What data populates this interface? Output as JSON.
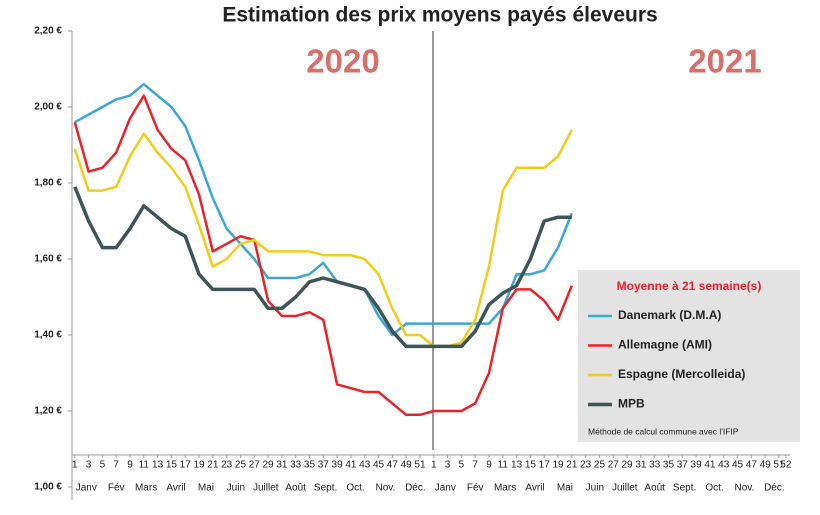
{
  "chart_data": {
    "type": "line",
    "title": "Estimation des prix moyens payés éleveurs",
    "annotations": [
      "2020",
      "2021"
    ],
    "legend_title": "Moyenne à  21 semaine(s)",
    "note": "Méthode de calcul commune avec l'IFIP",
    "month_labels": [
      "Janv",
      "Fév",
      "Mars",
      "Avril",
      "Mai",
      "Juin",
      "Juillet",
      "Août",
      "Sept.",
      "Oct.",
      "Nov.",
      "Déc."
    ],
    "x": [
      1,
      3,
      5,
      7,
      9,
      11,
      13,
      15,
      17,
      19,
      21,
      23,
      25,
      27,
      29,
      31,
      33,
      35,
      37,
      39,
      41,
      43,
      45,
      47,
      49,
      51,
      53,
      55,
      57,
      59,
      61,
      63,
      65,
      67,
      69,
      71,
      73
    ],
    "series": [
      {
        "name": "Danemark (D.M.A)",
        "color": "#3aa7d8",
        "values": [
          1.96,
          1.98,
          2.0,
          2.02,
          2.03,
          2.06,
          2.03,
          2.0,
          1.95,
          1.86,
          1.76,
          1.68,
          1.64,
          1.6,
          1.55,
          1.55,
          1.55,
          1.56,
          1.59,
          1.54,
          1.53,
          1.52,
          1.45,
          1.4,
          1.43,
          1.43,
          1.43,
          1.43,
          1.43,
          1.43,
          1.43,
          1.47,
          1.56,
          1.56,
          1.57,
          1.63,
          1.72
        ]
      },
      {
        "name": "Allemagne (AMI)",
        "color": "#e8232a",
        "values": [
          1.96,
          1.83,
          1.84,
          1.88,
          1.97,
          2.03,
          1.94,
          1.89,
          1.86,
          1.77,
          1.62,
          1.64,
          1.66,
          1.65,
          1.49,
          1.45,
          1.45,
          1.46,
          1.44,
          1.27,
          1.26,
          1.25,
          1.25,
          1.22,
          1.19,
          1.19,
          1.2,
          1.2,
          1.2,
          1.22,
          1.3,
          1.47,
          1.52,
          1.52,
          1.49,
          1.44,
          1.53
        ]
      },
      {
        "name": "Espagne (Mercolleida)",
        "color": "#f2cc1a",
        "values": [
          1.89,
          1.78,
          1.78,
          1.79,
          1.87,
          1.93,
          1.88,
          1.84,
          1.79,
          1.69,
          1.58,
          1.6,
          1.64,
          1.65,
          1.62,
          1.62,
          1.62,
          1.62,
          1.61,
          1.61,
          1.61,
          1.6,
          1.56,
          1.47,
          1.4,
          1.4,
          1.37,
          1.37,
          1.38,
          1.44,
          1.58,
          1.78,
          1.84,
          1.84,
          1.84,
          1.87,
          1.94
        ]
      },
      {
        "name": "MPB",
        "color": "#3d5556",
        "values": [
          1.79,
          1.7,
          1.63,
          1.63,
          1.68,
          1.74,
          1.71,
          1.68,
          1.66,
          1.56,
          1.52,
          1.52,
          1.52,
          1.52,
          1.47,
          1.47,
          1.5,
          1.54,
          1.55,
          1.54,
          1.53,
          1.52,
          1.47,
          1.41,
          1.37,
          1.37,
          1.37,
          1.37,
          1.37,
          1.41,
          1.48,
          1.51,
          1.53,
          1.6,
          1.7,
          1.71,
          1.71
        ]
      }
    ],
    "xlim": [
      0.6,
      104.6
    ],
    "xticks": [
      1,
      3,
      5,
      7,
      9,
      11,
      13,
      15,
      17,
      19,
      21,
      23,
      25,
      27,
      29,
      31,
      33,
      35,
      37,
      39,
      41,
      43,
      45,
      47,
      49,
      51,
      {
        "value": 53,
        "label": "1"
      },
      {
        "value": 55,
        "label": "3"
      },
      {
        "value": 57,
        "label": "5"
      },
      {
        "value": 59,
        "label": "7"
      },
      {
        "value": 61,
        "label": "9"
      },
      {
        "value": 63,
        "label": "11"
      },
      {
        "value": 65,
        "label": "13"
      },
      {
        "value": 67,
        "label": "15"
      },
      {
        "value": 69,
        "label": "17"
      },
      {
        "value": 71,
        "label": "19"
      },
      {
        "value": 73,
        "label": "21"
      },
      {
        "value": 75,
        "label": "23"
      },
      {
        "value": 77,
        "label": "25"
      },
      {
        "value": 79,
        "label": "27"
      },
      {
        "value": 81,
        "label": "29"
      },
      {
        "value": 83,
        "label": "31"
      },
      {
        "value": 85,
        "label": "33"
      },
      {
        "value": 87,
        "label": "35"
      },
      {
        "value": 89,
        "label": "37"
      },
      {
        "value": 91,
        "label": "39"
      },
      {
        "value": 93,
        "label": "41"
      },
      {
        "value": 95,
        "label": "43"
      },
      {
        "value": 97,
        "label": "45"
      },
      {
        "value": 99,
        "label": "47"
      },
      {
        "value": 101,
        "label": "49"
      },
      {
        "value": 103,
        "label": "51"
      },
      {
        "value": 104,
        "label": "52"
      }
    ],
    "ylim": [
      1.0,
      2.2
    ],
    "yticks": [
      {
        "value": 1.0,
        "label": "1,00 €"
      },
      {
        "value": 1.2,
        "label": "1,20 €"
      },
      {
        "value": 1.4,
        "label": "1,40 €"
      },
      {
        "value": 1.6,
        "label": "1,60 €"
      },
      {
        "value": 1.8,
        "label": "1,80 €"
      },
      {
        "value": 2.0,
        "label": "2,00 €"
      },
      {
        "value": 2.2,
        "label": "2,20 €"
      }
    ]
  }
}
